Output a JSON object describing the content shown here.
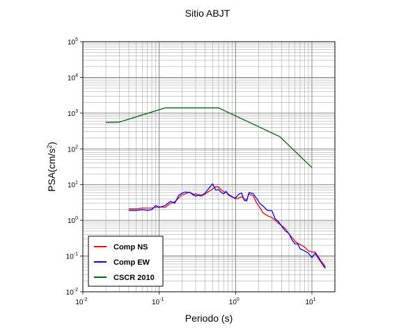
{
  "chart_data": {
    "type": "line",
    "title": "Sitio ABJT",
    "xlabel": "Periodo (s)",
    "ylabel": "PSA(cm/s²)",
    "x_scale": "log",
    "y_scale": "log",
    "xlim": [
      0.01,
      20
    ],
    "ylim": [
      0.01,
      100000
    ],
    "x_ticks": [
      {
        "base": "10",
        "exp": "-2"
      },
      {
        "base": "10",
        "exp": "-1"
      },
      {
        "base": "10",
        "exp": "0"
      },
      {
        "base": "10",
        "exp": "1"
      }
    ],
    "y_ticks": [
      {
        "base": "10",
        "exp": "-2"
      },
      {
        "base": "10",
        "exp": "-1"
      },
      {
        "base": "10",
        "exp": "0"
      },
      {
        "base": "10",
        "exp": "1"
      },
      {
        "base": "10",
        "exp": "2"
      },
      {
        "base": "10",
        "exp": "3"
      },
      {
        "base": "10",
        "exp": "4"
      },
      {
        "base": "10",
        "exp": "5"
      }
    ],
    "grid": true,
    "legend_position": "bottom-left",
    "series": [
      {
        "name": "Comp NS",
        "color": "#ff0000",
        "x": [
          0.04,
          0.05,
          0.06,
          0.07,
          0.08,
          0.09,
          0.1,
          0.12,
          0.14,
          0.16,
          0.18,
          0.2,
          0.22,
          0.25,
          0.28,
          0.3,
          0.33,
          0.36,
          0.4,
          0.45,
          0.5,
          0.55,
          0.6,
          0.65,
          0.7,
          0.75,
          0.8,
          0.9,
          1.0,
          1.1,
          1.2,
          1.3,
          1.4,
          1.5,
          1.7,
          1.9,
          2.1,
          2.3,
          2.6,
          3.0,
          3.3,
          3.6,
          4.0,
          4.5,
          5.0,
          5.5,
          6.0,
          6.5,
          7.0,
          8.0,
          9.0,
          10.0,
          11.0,
          12.0,
          13.0,
          14.0,
          15.0
        ],
        "values": [
          2.1,
          2.1,
          2.2,
          2.2,
          2.2,
          2.3,
          2.4,
          2.3,
          3.0,
          3.3,
          4.2,
          5.2,
          5.5,
          6.2,
          5.0,
          5.6,
          4.9,
          4.8,
          5.5,
          6.5,
          7.5,
          8.8,
          8.5,
          7.2,
          6.3,
          6.0,
          5.5,
          4.6,
          4.0,
          4.2,
          4.6,
          4.0,
          3.8,
          5.5,
          4.8,
          3.0,
          2.2,
          1.6,
          1.35,
          1.2,
          1.0,
          0.85,
          0.72,
          0.58,
          0.42,
          0.33,
          0.26,
          0.23,
          0.21,
          0.18,
          0.14,
          0.13,
          0.13,
          0.1,
          0.075,
          0.062,
          0.05
        ]
      },
      {
        "name": "Comp EW",
        "color": "#0000ff",
        "x": [
          0.04,
          0.05,
          0.06,
          0.07,
          0.08,
          0.09,
          0.1,
          0.12,
          0.14,
          0.16,
          0.18,
          0.2,
          0.22,
          0.25,
          0.28,
          0.3,
          0.33,
          0.36,
          0.4,
          0.45,
          0.5,
          0.55,
          0.6,
          0.65,
          0.7,
          0.75,
          0.8,
          0.9,
          1.0,
          1.1,
          1.2,
          1.3,
          1.4,
          1.5,
          1.7,
          1.9,
          2.1,
          2.3,
          2.6,
          3.0,
          3.3,
          3.6,
          4.0,
          4.5,
          5.0,
          5.5,
          6.0,
          6.5,
          7.0,
          8.0,
          9.0,
          10.0,
          11.0,
          12.0,
          13.0,
          14.0,
          15.0
        ],
        "values": [
          1.9,
          1.9,
          2.0,
          1.9,
          2.0,
          2.6,
          2.3,
          2.6,
          3.4,
          3.0,
          5.0,
          5.8,
          6.2,
          6.0,
          5.4,
          4.7,
          5.2,
          5.0,
          5.8,
          8.0,
          10.5,
          7.0,
          7.3,
          6.0,
          5.5,
          6.5,
          5.2,
          4.5,
          4.2,
          5.4,
          5.8,
          3.6,
          3.5,
          6.0,
          5.6,
          4.0,
          2.9,
          2.5,
          1.9,
          1.85,
          1.1,
          0.95,
          0.7,
          0.5,
          0.43,
          0.28,
          0.22,
          0.22,
          0.16,
          0.14,
          0.12,
          0.09,
          0.12,
          0.09,
          0.07,
          0.055,
          0.045
        ]
      },
      {
        "name": "CSCR 2010",
        "color": "#006400",
        "x": [
          0.02,
          0.03,
          0.12,
          0.6,
          3.8,
          10.0
        ],
        "values": [
          550,
          560,
          1400,
          1400,
          220,
          30
        ]
      }
    ]
  }
}
